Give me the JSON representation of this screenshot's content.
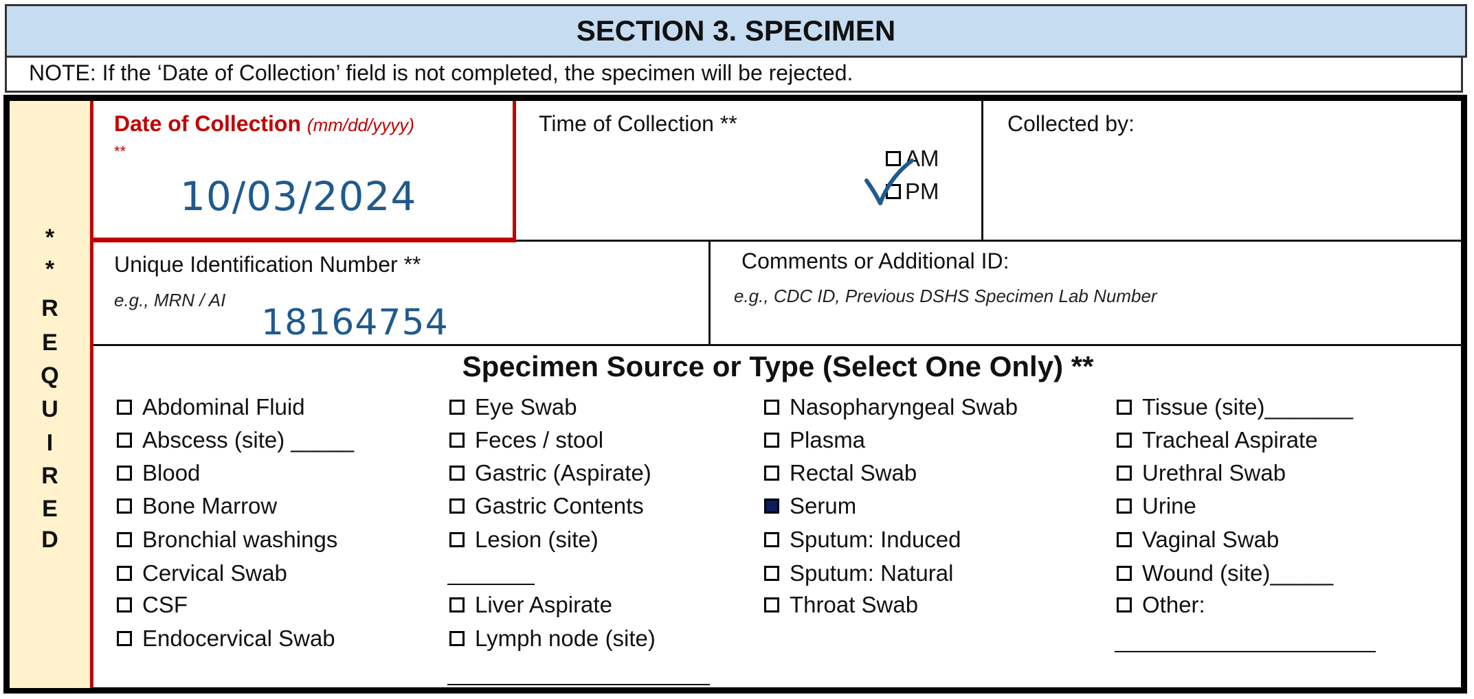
{
  "section": {
    "title": "SECTION 3. SPECIMEN",
    "note": "NOTE: If the ‘Date of Collection’ field is not completed, the specimen will be rejected."
  },
  "required_label": [
    "*",
    "*",
    "R",
    "E",
    "Q",
    "U",
    "I",
    "R",
    "E",
    "D"
  ],
  "date_of_collection": {
    "label": "Date of Collection",
    "format_hint": "(mm/dd/yyyy)",
    "required_mark": "**",
    "value": "10/03/2024"
  },
  "time_of_collection": {
    "label": "Time of Collection **",
    "options": [
      {
        "label": "AM",
        "checked": false
      },
      {
        "label": "PM",
        "checked": true
      }
    ]
  },
  "collected_by": {
    "label": "Collected by:",
    "value": ""
  },
  "unique_id": {
    "label": "Unique Identification Number **",
    "hint": "e.g., MRN / AI",
    "value": "18164754"
  },
  "comments": {
    "label": "Comments or Additional ID:",
    "hint": "e.g., CDC ID, Previous DSHS Specimen Lab Number"
  },
  "specimen_source": {
    "title": "Specimen Source or Type (Select One Only) **",
    "columns": [
      [
        {
          "label": "Abdominal Fluid",
          "checked": false
        },
        {
          "label": "Abscess (site) _____",
          "checked": false
        },
        {
          "label": "Blood",
          "checked": false
        },
        {
          "label": "Bone Marrow",
          "checked": false
        },
        {
          "label": "Bronchial washings",
          "checked": false
        },
        {
          "label": "Cervical Swab",
          "checked": false
        },
        {
          "label": "CSF",
          "checked": false
        },
        {
          "label": "Endocervical Swab",
          "checked": false
        }
      ],
      [
        {
          "label": "Eye Swab",
          "checked": false
        },
        {
          "label": "Feces / stool",
          "checked": false
        },
        {
          "label": "Gastric (Aspirate)",
          "checked": false
        },
        {
          "label": "Gastric Contents",
          "checked": false
        },
        {
          "label": "Lesion (site)",
          "checked": false
        },
        {
          "label": "Liver Aspirate",
          "checked": false
        },
        {
          "label": "Lymph node (site)",
          "checked": false
        }
      ],
      [
        {
          "label": "Nasopharyngeal Swab",
          "checked": false
        },
        {
          "label": "Plasma",
          "checked": false
        },
        {
          "label": "Rectal Swab",
          "checked": false
        },
        {
          "label": "Serum",
          "checked": true
        },
        {
          "label": "Sputum: Induced",
          "checked": false
        },
        {
          "label": "Sputum: Natural",
          "checked": false
        },
        {
          "label": "Throat Swab",
          "checked": false
        }
      ],
      [
        {
          "label": "Tissue (site)_______",
          "checked": false
        },
        {
          "label": "Tracheal Aspirate",
          "checked": false
        },
        {
          "label": "Urethral Swab",
          "checked": false
        },
        {
          "label": "Urine",
          "checked": false
        },
        {
          "label": "Vaginal Swab",
          "checked": false
        },
        {
          "label": "Wound (site)_____",
          "checked": false
        },
        {
          "label": "Other:",
          "checked": false
        }
      ]
    ]
  },
  "colors": {
    "header_bg": "#c6dcf1",
    "required_bg": "#fff2cc",
    "required_border": "#c00000",
    "handwriting": "#1f5a8f",
    "checked_fill": "#0b1d5a"
  }
}
